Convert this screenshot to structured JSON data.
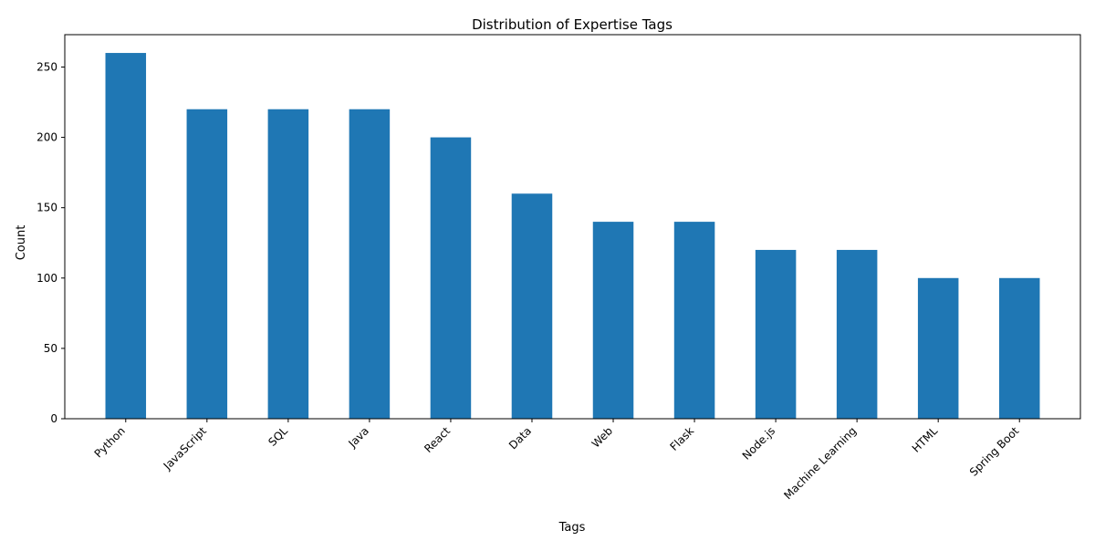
{
  "chart_data": {
    "type": "bar",
    "title": "Distribution of Expertise Tags",
    "xlabel": "Tags",
    "ylabel": "Count",
    "categories": [
      "Python",
      "JavaScript",
      "SQL",
      "Java",
      "React",
      "Data",
      "Web",
      "Flask",
      "Node.js",
      "Machine Learning",
      "HTML",
      "Spring Boot"
    ],
    "values": [
      260,
      220,
      220,
      220,
      200,
      160,
      140,
      140,
      120,
      120,
      100,
      100
    ],
    "ylim": [
      0,
      273
    ],
    "yticks": [
      0,
      50,
      100,
      150,
      200,
      250
    ],
    "bar_color": "#1f77b4",
    "grid": false,
    "legend": false
  }
}
